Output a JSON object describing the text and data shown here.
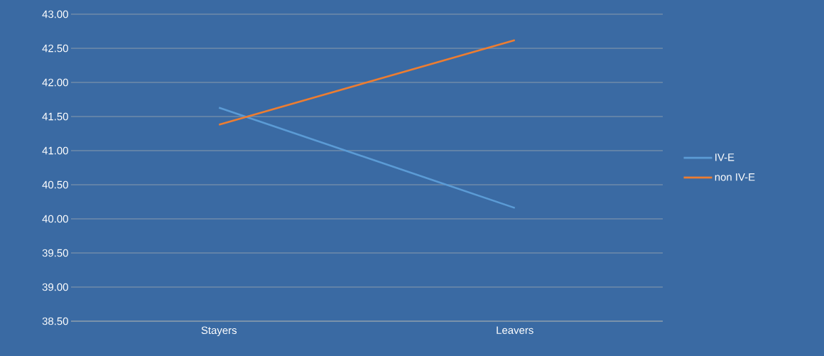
{
  "chart_data": {
    "type": "line",
    "categories": [
      "Stayers",
      "Leavers"
    ],
    "series": [
      {
        "name": "IV-E",
        "color": "#5b9bd5",
        "values": [
          41.63,
          40.16
        ]
      },
      {
        "name": "non IV-E",
        "color": "#ed7d31",
        "values": [
          41.38,
          42.62
        ]
      }
    ],
    "ylim": [
      38.5,
      43
    ],
    "yticks": [
      {
        "value": 38.5,
        "label": "38.50"
      },
      {
        "value": 39,
        "label": "39.00"
      },
      {
        "value": 39.5,
        "label": "39.50"
      },
      {
        "value": 40,
        "label": "40.00"
      },
      {
        "value": 40.5,
        "label": "40.50"
      },
      {
        "value": 41,
        "label": "41.00"
      },
      {
        "value": 41.5,
        "label": "41.50"
      },
      {
        "value": 42,
        "label": "42.00"
      },
      {
        "value": 42.5,
        "label": "42.50"
      },
      {
        "value": 43,
        "label": "43.00"
      }
    ],
    "grid": "y",
    "legend": "right",
    "marker": "none",
    "line_style": "solid"
  }
}
